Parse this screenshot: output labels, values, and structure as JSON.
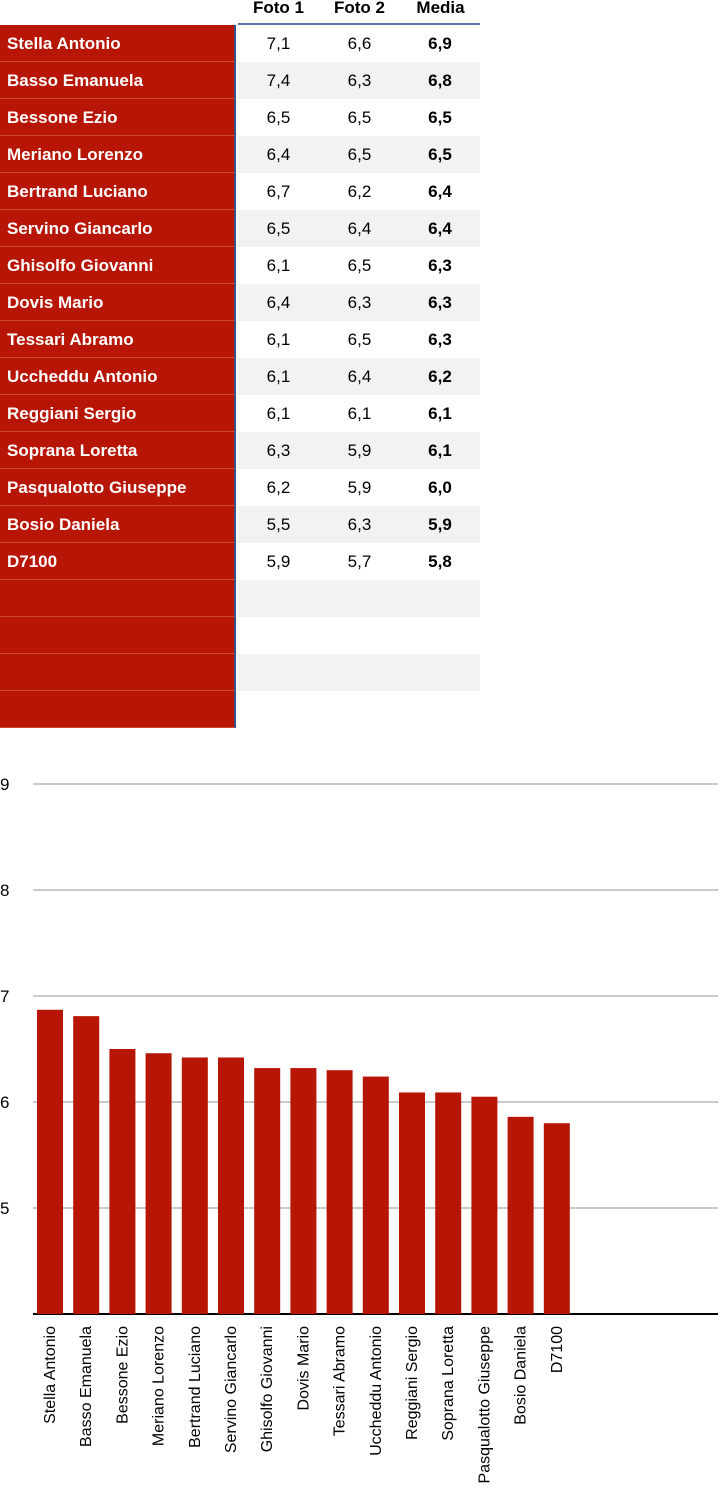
{
  "table": {
    "headers": [
      "Foto 1",
      "Foto 2",
      "Media"
    ],
    "rows": [
      {
        "name": "Stella Antonio",
        "foto1": "7,1",
        "foto2": "6,6",
        "media": "6,9"
      },
      {
        "name": "Basso Emanuela",
        "foto1": "7,4",
        "foto2": "6,3",
        "media": "6,8"
      },
      {
        "name": "Bessone Ezio",
        "foto1": "6,5",
        "foto2": "6,5",
        "media": "6,5"
      },
      {
        "name": "Meriano Lorenzo",
        "foto1": "6,4",
        "foto2": "6,5",
        "media": "6,5"
      },
      {
        "name": "Bertrand Luciano",
        "foto1": "6,7",
        "foto2": "6,2",
        "media": "6,4"
      },
      {
        "name": "Servino Giancarlo",
        "foto1": "6,5",
        "foto2": "6,4",
        "media": "6,4"
      },
      {
        "name": "Ghisolfo Giovanni",
        "foto1": "6,1",
        "foto2": "6,5",
        "media": "6,3"
      },
      {
        "name": "Dovis Mario",
        "foto1": "6,4",
        "foto2": "6,3",
        "media": "6,3"
      },
      {
        "name": "Tessari Abramo",
        "foto1": "6,1",
        "foto2": "6,5",
        "media": "6,3"
      },
      {
        "name": "Uccheddu Antonio",
        "foto1": "6,1",
        "foto2": "6,4",
        "media": "6,2"
      },
      {
        "name": "Reggiani Sergio",
        "foto1": "6,1",
        "foto2": "6,1",
        "media": "6,1"
      },
      {
        "name": "Soprana Loretta",
        "foto1": "6,3",
        "foto2": "5,9",
        "media": "6,1"
      },
      {
        "name": "Pasqualotto Giuseppe",
        "foto1": "6,2",
        "foto2": "5,9",
        "media": "6,0"
      },
      {
        "name": "Bosio Daniela",
        "foto1": "5,5",
        "foto2": "6,3",
        "media": "5,9"
      },
      {
        "name": "D7100",
        "foto1": "5,9",
        "foto2": "5,7",
        "media": "5,8"
      },
      {
        "name": "",
        "foto1": "",
        "foto2": "",
        "media": ""
      },
      {
        "name": "",
        "foto1": "",
        "foto2": "",
        "media": ""
      },
      {
        "name": "",
        "foto1": "",
        "foto2": "",
        "media": ""
      },
      {
        "name": "",
        "foto1": "",
        "foto2": "",
        "media": ""
      }
    ]
  },
  "colors": {
    "bar": "#b71505",
    "grid": "#b9b9b9",
    "header_rule": "#5b74a8"
  },
  "chart_data": {
    "type": "bar",
    "categories": [
      "Stella Antonio",
      "Basso Emanuela",
      "Bessone Ezio",
      "Meriano Lorenzo",
      "Bertrand Luciano",
      "Servino Giancarlo",
      "Ghisolfo Giovanni",
      "Dovis Mario",
      "Tessari Abramo",
      "Uccheddu Antonio",
      "Reggiani Sergio",
      "Soprana Loretta",
      "Pasqualotto Giuseppe",
      "Bosio Daniela",
      "D7100"
    ],
    "values": [
      6.87,
      6.81,
      6.5,
      6.46,
      6.42,
      6.42,
      6.32,
      6.32,
      6.3,
      6.24,
      6.09,
      6.09,
      6.05,
      5.86,
      5.8
    ],
    "title": "",
    "xlabel": "",
    "ylabel": "",
    "ylim": [
      4,
      9
    ],
    "yticks": [
      "9",
      "8",
      "7",
      "6",
      "5"
    ],
    "grid": true,
    "legend": "none"
  }
}
